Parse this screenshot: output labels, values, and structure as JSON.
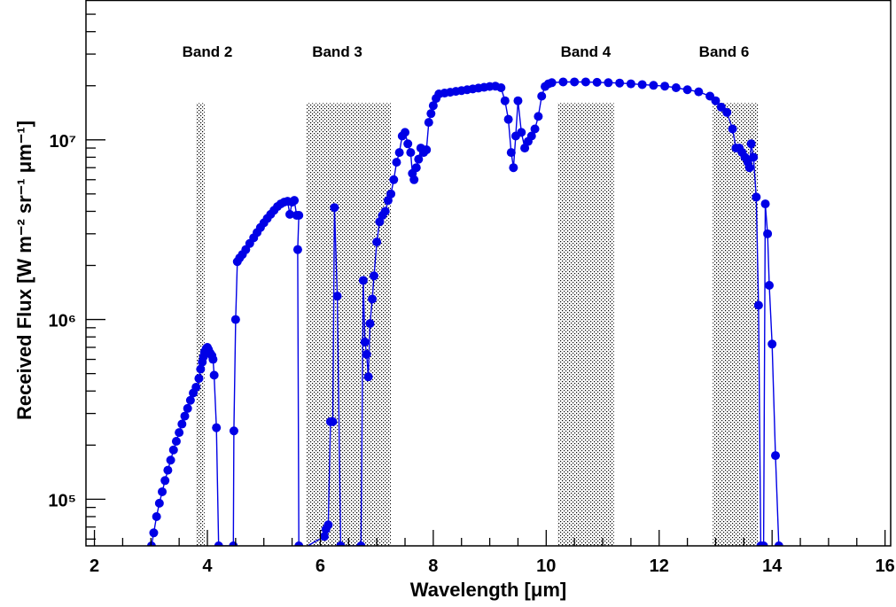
{
  "chart_data": {
    "type": "scatter",
    "title": "",
    "xlabel": "Wavelength [μm]",
    "ylabel": "Received Flux [W m⁻² sr⁻¹ μm⁻¹]",
    "xlim": [
      1.85,
      16.1
    ],
    "ylim": [
      55000,
      60000000
    ],
    "y_scale": "log",
    "x_ticks": [
      "2",
      "4",
      "6",
      "8",
      "10",
      "12",
      "14",
      "16"
    ],
    "y_ticks": [
      "10⁵",
      "10⁶",
      "10⁷"
    ],
    "grid": false,
    "legend": "none",
    "colors": {
      "series": "#0000e6",
      "band_fill": "#000000"
    },
    "bands": [
      {
        "label": "Band 2",
        "x_start": 3.8,
        "x_end": 3.95,
        "label_x": 4.0
      },
      {
        "label": "Band 3",
        "x_start": 5.75,
        "x_end": 7.25,
        "label_x": 6.3
      },
      {
        "label": "Band 4",
        "x_start": 10.2,
        "x_end": 11.2,
        "label_x": 10.7
      },
      {
        "label": "Band 6",
        "x_start": 12.95,
        "x_end": 13.75,
        "label_x": 13.15
      }
    ],
    "band_top_y": 16000000,
    "series": [
      {
        "values": [
          [
            3.01,
            55000
          ],
          [
            3.05,
            65000
          ],
          [
            3.1,
            80000
          ],
          [
            3.15,
            95000
          ],
          [
            3.2,
            110000
          ],
          [
            3.25,
            127000
          ],
          [
            3.3,
            145000
          ],
          [
            3.35,
            165000
          ],
          [
            3.4,
            188000
          ],
          [
            3.45,
            210000
          ],
          [
            3.5,
            235000
          ],
          [
            3.55,
            262000
          ],
          [
            3.6,
            290000
          ],
          [
            3.65,
            320000
          ],
          [
            3.7,
            355000
          ],
          [
            3.75,
            390000
          ],
          [
            3.8,
            420000
          ],
          [
            3.85,
            470000
          ],
          [
            3.88,
            530000
          ],
          [
            3.91,
            580000
          ],
          [
            3.93,
            620000
          ],
          [
            3.95,
            660000
          ],
          [
            3.98,
            690000
          ],
          [
            4.0,
            700000
          ],
          [
            4.02,
            680000
          ],
          [
            4.05,
            650000
          ],
          [
            4.08,
            630000
          ],
          [
            4.1,
            600000
          ],
          [
            4.12,
            490000
          ],
          [
            4.16,
            250000
          ],
          [
            4.2,
            55000
          ],
          [
            4.46,
            55000
          ],
          [
            4.47,
            240000
          ],
          [
            4.5,
            1000000
          ],
          [
            4.53,
            2100000
          ],
          [
            4.57,
            2200000
          ],
          [
            4.62,
            2300000
          ],
          [
            4.68,
            2450000
          ],
          [
            4.75,
            2650000
          ],
          [
            4.82,
            2850000
          ],
          [
            4.88,
            3050000
          ],
          [
            4.94,
            3250000
          ],
          [
            5.0,
            3450000
          ],
          [
            5.06,
            3650000
          ],
          [
            5.12,
            3850000
          ],
          [
            5.18,
            4050000
          ],
          [
            5.24,
            4250000
          ],
          [
            5.3,
            4400000
          ],
          [
            5.36,
            4500000
          ],
          [
            5.42,
            4550000
          ],
          [
            5.46,
            3850000
          ],
          [
            5.5,
            4500000
          ],
          [
            5.54,
            4600000
          ],
          [
            5.58,
            3800000
          ],
          [
            5.62,
            3800000
          ],
          [
            5.6,
            2450000
          ],
          [
            5.62,
            55000
          ],
          [
            5.64,
            52000
          ],
          [
            6.07,
            62000
          ],
          [
            6.1,
            68000
          ],
          [
            6.14,
            72000
          ],
          [
            6.18,
            270000
          ],
          [
            6.22,
            270000
          ],
          [
            6.25,
            4200000
          ],
          [
            6.3,
            1350000
          ],
          [
            6.36,
            55000
          ],
          [
            6.72,
            55000
          ],
          [
            6.76,
            1650000
          ],
          [
            6.79,
            750000
          ],
          [
            6.82,
            640000
          ],
          [
            6.85,
            480000
          ],
          [
            6.88,
            950000
          ],
          [
            6.92,
            1300000
          ],
          [
            6.95,
            1750000
          ],
          [
            7.0,
            2700000
          ],
          [
            7.05,
            3500000
          ],
          [
            7.1,
            3800000
          ],
          [
            7.15,
            4000000
          ],
          [
            7.2,
            4600000
          ],
          [
            7.25,
            5000000
          ],
          [
            7.3,
            6000000
          ],
          [
            7.35,
            7500000
          ],
          [
            7.4,
            8500000
          ],
          [
            7.45,
            10500000
          ],
          [
            7.5,
            11000000
          ],
          [
            7.55,
            9500000
          ],
          [
            7.6,
            8500000
          ],
          [
            7.63,
            6500000
          ],
          [
            7.66,
            6000000
          ],
          [
            7.7,
            7000000
          ],
          [
            7.74,
            7800000
          ],
          [
            7.78,
            9000000
          ],
          [
            7.83,
            8500000
          ],
          [
            7.88,
            8800000
          ],
          [
            7.92,
            12500000
          ],
          [
            7.96,
            14000000
          ],
          [
            8.0,
            15500000
          ],
          [
            8.05,
            17000000
          ],
          [
            8.1,
            18000000
          ],
          [
            8.2,
            18200000
          ],
          [
            8.3,
            18400000
          ],
          [
            8.4,
            18600000
          ],
          [
            8.5,
            18800000
          ],
          [
            8.6,
            19000000
          ],
          [
            8.7,
            19200000
          ],
          [
            8.8,
            19400000
          ],
          [
            8.9,
            19600000
          ],
          [
            9.0,
            19800000
          ],
          [
            9.1,
            19900000
          ],
          [
            9.2,
            19500000
          ],
          [
            9.27,
            16500000
          ],
          [
            9.33,
            13000000
          ],
          [
            9.38,
            8500000
          ],
          [
            9.42,
            7000000
          ],
          [
            9.46,
            10500000
          ],
          [
            9.5,
            16500000
          ],
          [
            9.56,
            11000000
          ],
          [
            9.62,
            9000000
          ],
          [
            9.68,
            9800000
          ],
          [
            9.74,
            10500000
          ],
          [
            9.8,
            11500000
          ],
          [
            9.86,
            13500000
          ],
          [
            9.92,
            17500000
          ],
          [
            9.98,
            19800000
          ],
          [
            10.04,
            20500000
          ],
          [
            10.1,
            20800000
          ],
          [
            10.3,
            21000000
          ],
          [
            10.5,
            21000000
          ],
          [
            10.7,
            21000000
          ],
          [
            10.9,
            20900000
          ],
          [
            11.1,
            20800000
          ],
          [
            11.3,
            20700000
          ],
          [
            11.5,
            20500000
          ],
          [
            11.7,
            20300000
          ],
          [
            11.9,
            20100000
          ],
          [
            12.1,
            19900000
          ],
          [
            12.3,
            19500000
          ],
          [
            12.5,
            19000000
          ],
          [
            12.7,
            18500000
          ],
          [
            12.9,
            17500000
          ],
          [
            13.0,
            16500000
          ],
          [
            13.1,
            15200000
          ],
          [
            13.2,
            14200000
          ],
          [
            13.3,
            11500000
          ],
          [
            13.36,
            9000000
          ],
          [
            13.42,
            9000000
          ],
          [
            13.47,
            8500000
          ],
          [
            13.52,
            8000000
          ],
          [
            13.57,
            7500000
          ],
          [
            13.6,
            7000000
          ],
          [
            13.63,
            9500000
          ],
          [
            13.67,
            8000000
          ],
          [
            13.72,
            4800000
          ],
          [
            13.76,
            1200000
          ],
          [
            13.8,
            55000
          ],
          [
            13.85,
            55000
          ],
          [
            13.88,
            4400000
          ],
          [
            13.92,
            3000000
          ],
          [
            13.95,
            1550000
          ],
          [
            14.0,
            730000
          ],
          [
            14.06,
            175000
          ],
          [
            14.12,
            55000
          ]
        ]
      }
    ]
  }
}
